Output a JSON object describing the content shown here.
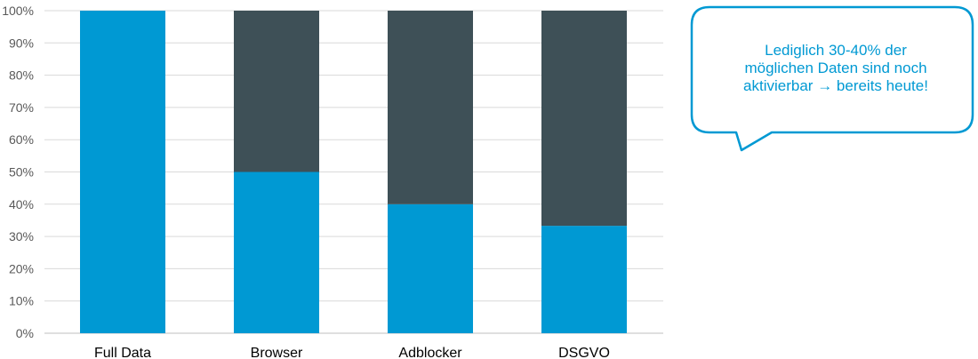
{
  "chart_data": {
    "type": "bar",
    "stacked": true,
    "categories": [
      "Full Data",
      "Browser",
      "Adblocker",
      "DSGVO"
    ],
    "series": [
      {
        "color": "#0099d3",
        "values": [
          100,
          50,
          40,
          33.3
        ]
      },
      {
        "color": "#3e5057",
        "values": [
          0,
          50,
          60,
          66.7
        ]
      }
    ],
    "ylim": [
      0,
      100
    ],
    "yticks": [
      "0%",
      "10%",
      "20%",
      "30%",
      "40%",
      "50%",
      "60%",
      "70%",
      "80%",
      "90%",
      "100%"
    ],
    "grid": true,
    "legend": "none",
    "title": "",
    "xlabel": "",
    "ylabel": ""
  },
  "callout": {
    "lines": [
      "Lediglich 30-40% der",
      "möglichen Daten sind noch",
      "aktivierbar → bereits heute!"
    ],
    "color": "#0099d3"
  }
}
